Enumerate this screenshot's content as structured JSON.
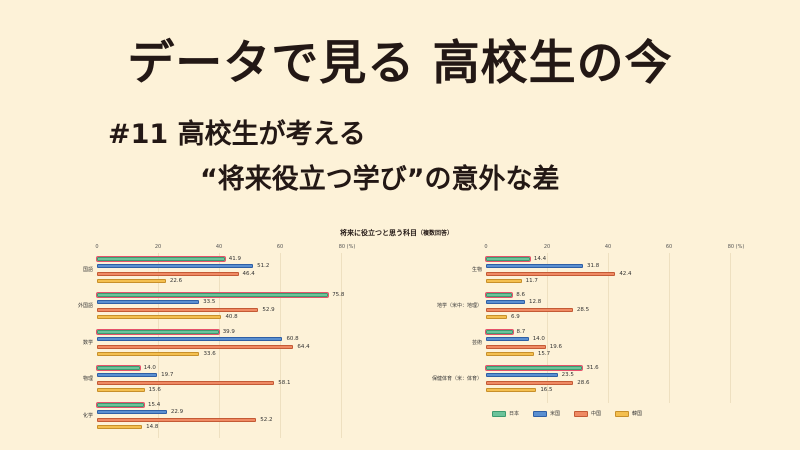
{
  "header": {
    "title": "データで見る 高校生の今",
    "subtitle_line1": "#11 高校生が考える",
    "subtitle_line2": "“将来役立つ学び”の意外な差"
  },
  "chart_data": {
    "type": "bar",
    "orientation": "horizontal",
    "title": "将来に役立つと思う科目",
    "title_note": "（複数回答）",
    "xlabel": "(%)",
    "xlim": [
      0,
      80
    ],
    "xticks": [
      "0",
      "20",
      "40",
      "60",
      "80 (%)"
    ],
    "grid": true,
    "legend": [
      "日本",
      "米国",
      "中国",
      "韓国"
    ],
    "legend_position": "bottom-right",
    "series_colors": {
      "日本": "#6cc39a",
      "米国": "#5a8fd0",
      "中国": "#ef8a63",
      "韓国": "#f4bf4f"
    },
    "categories": [
      "国語",
      "外国語",
      "数学",
      "物理",
      "化学",
      "生物",
      "地学（米中：地理）",
      "芸術",
      "保健体育（米：体育）"
    ],
    "series": [
      {
        "name": "日本",
        "values": [
          41.9,
          75.8,
          39.9,
          14.0,
          15.4,
          14.4,
          8.6,
          8.7,
          31.6
        ]
      },
      {
        "name": "米国",
        "values": [
          51.2,
          33.5,
          60.8,
          19.7,
          22.9,
          31.8,
          12.8,
          14.0,
          23.5
        ]
      },
      {
        "name": "中国",
        "values": [
          46.4,
          52.9,
          64.4,
          58.1,
          52.2,
          42.4,
          28.5,
          19.6,
          28.6
        ]
      },
      {
        "name": "韓国",
        "values": [
          22.6,
          40.8,
          33.6,
          15.6,
          14.8,
          11.7,
          6.9,
          15.7,
          16.5
        ]
      }
    ],
    "panels": [
      {
        "categories": [
          "国語",
          "外国語",
          "数学",
          "物理",
          "化学"
        ]
      },
      {
        "categories": [
          "生物",
          "地学（米中：地理）",
          "芸術",
          "保健体育（米：体育）"
        ]
      }
    ]
  },
  "chart": {
    "title": "将来に役立つと思う科目",
    "title_note": "（複数回答）",
    "ticks": [
      "0",
      "20",
      "40",
      "60",
      "80 (%)"
    ],
    "legend": [
      {
        "label": "日本",
        "color": "#6cc39a"
      },
      {
        "label": "米国",
        "color": "#5a8fd0"
      },
      {
        "label": "中国",
        "color": "#ef8a63"
      },
      {
        "label": "韓国",
        "color": "#f4bf4f"
      }
    ],
    "left": [
      {
        "label": "国語",
        "values": [
          "41.9",
          "51.2",
          "46.4",
          "22.6"
        ]
      },
      {
        "label": "外国語",
        "values": [
          "75.8",
          "33.5",
          "52.9",
          "40.8"
        ]
      },
      {
        "label": "数学",
        "values": [
          "39.9",
          "60.8",
          "64.4",
          "33.6"
        ]
      },
      {
        "label": "物理",
        "values": [
          "14.0",
          "19.7",
          "58.1",
          "15.6"
        ]
      },
      {
        "label": "化学",
        "values": [
          "15.4",
          "22.9",
          "52.2",
          "14.8"
        ]
      }
    ],
    "right": [
      {
        "label": "生物",
        "values": [
          "14.4",
          "31.8",
          "42.4",
          "11.7"
        ]
      },
      {
        "label": "地学（米中：地理）",
        "values": [
          "8.6",
          "12.8",
          "28.5",
          "6.9"
        ]
      },
      {
        "label": "芸術",
        "values": [
          "8.7",
          "14.0",
          "19.6",
          "15.7"
        ]
      },
      {
        "label": "保健体育（米：体育）",
        "values": [
          "31.6",
          "23.5",
          "28.6",
          "16.5"
        ]
      }
    ]
  }
}
